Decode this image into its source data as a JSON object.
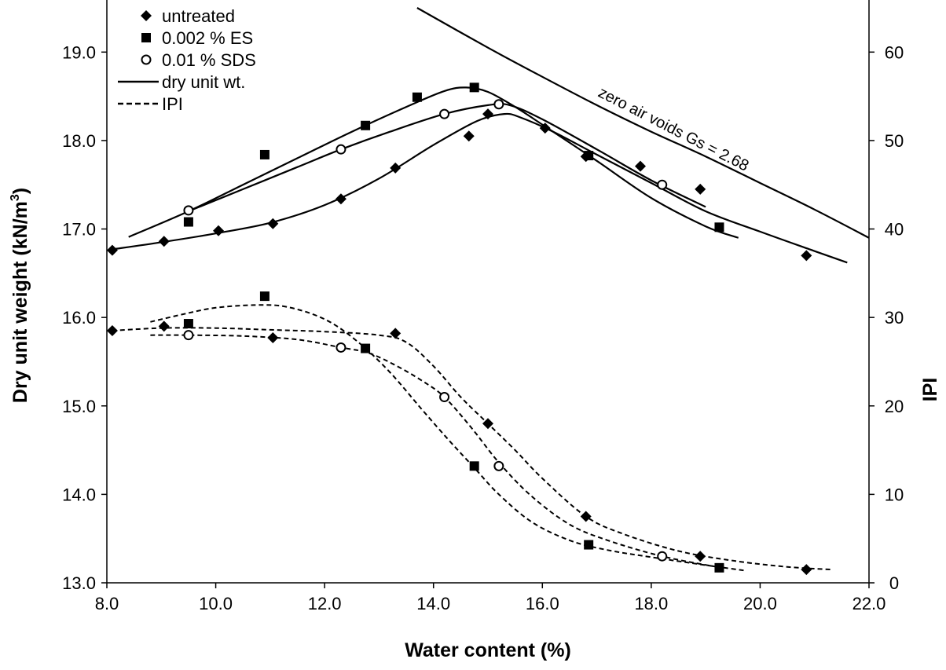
{
  "chart_data": {
    "type": "scatter",
    "title": "",
    "xlabel": "Water content (%)",
    "ylabel": "Dry unit weight (kN/m³)",
    "ylabel_parts": [
      "Dry unit weight (kN/m",
      "3",
      ")"
    ],
    "y2label": "IPI",
    "xlim": [
      8.0,
      22.0
    ],
    "ylim": [
      13.0,
      19.5
    ],
    "y2lim": [
      0,
      65
    ],
    "x_ticks": [
      "8.0",
      "10.0",
      "12.0",
      "14.0",
      "16.0",
      "18.0",
      "20.0",
      "22.0"
    ],
    "y_ticks": [
      "13.0",
      "14.0",
      "15.0",
      "16.0",
      "17.0",
      "18.0",
      "19.0"
    ],
    "y2_ticks": [
      "0",
      "10",
      "20",
      "30",
      "40",
      "50",
      "60"
    ],
    "grid": false,
    "legend_position": "top-left",
    "legend": [
      "untreated",
      "0.002 % ES",
      "0.01 % SDS",
      "dry unit wt.",
      "IPI"
    ],
    "annotation": "zero air voids Gs = 2.68",
    "series": [
      {
        "name": "untreated",
        "marker": "diamond",
        "axis": "left",
        "kind": "dry unit wt.",
        "x": [
          8.1,
          9.05,
          10.05,
          11.05,
          12.3,
          13.3,
          14.65,
          15.0,
          16.05,
          16.8,
          17.8,
          18.9,
          20.85
        ],
        "y": [
          16.76,
          16.86,
          16.98,
          17.06,
          17.34,
          17.69,
          18.05,
          18.3,
          18.14,
          17.82,
          17.71,
          17.45,
          16.7
        ]
      },
      {
        "name": "0.002 % ES",
        "marker": "square",
        "axis": "left",
        "kind": "dry unit wt.",
        "x": [
          9.5,
          10.9,
          12.75,
          13.7,
          14.75,
          16.85,
          19.25
        ],
        "y": [
          17.08,
          17.84,
          18.17,
          18.49,
          18.6,
          17.83,
          17.02
        ]
      },
      {
        "name": "0.01 % SDS",
        "marker": "circle",
        "axis": "left",
        "kind": "dry unit wt.",
        "x": [
          9.5,
          12.3,
          14.2,
          15.2,
          18.2
        ],
        "y": [
          17.21,
          17.9,
          18.3,
          18.41,
          17.5
        ]
      },
      {
        "name": "untreated",
        "marker": "diamond",
        "axis": "right",
        "kind": "IPI",
        "x": [
          8.1,
          9.05,
          11.05,
          13.3,
          15.0,
          16.8,
          18.9,
          20.85
        ],
        "y": [
          28.5,
          29,
          27.7,
          28.2,
          18,
          7.5,
          3,
          1.5
        ]
      },
      {
        "name": "0.002 % ES",
        "marker": "square",
        "axis": "right",
        "kind": "IPI",
        "x": [
          9.5,
          10.9,
          12.75,
          14.75,
          16.85,
          19.25
        ],
        "y": [
          29.3,
          32.4,
          26.5,
          13.2,
          4.3,
          1.7
        ]
      },
      {
        "name": "0.01 % SDS",
        "marker": "circle",
        "axis": "right",
        "kind": "IPI",
        "x": [
          9.5,
          12.3,
          14.2,
          15.2,
          18.2
        ],
        "y": [
          28,
          26.6,
          21,
          13.2,
          3
        ]
      }
    ],
    "fit_curves": [
      {
        "kind": "dry unit wt.",
        "axis": "left",
        "style": "solid",
        "x": [
          8.1,
          9.0,
          10.0,
          11.0,
          12.0,
          13.0,
          14.0,
          14.8,
          15.3,
          15.6,
          16.2,
          17.0,
          18.0,
          19.0,
          20.0,
          21.0,
          21.6
        ],
        "y": [
          16.77,
          16.85,
          16.95,
          17.07,
          17.27,
          17.57,
          17.95,
          18.22,
          18.3,
          18.26,
          18.1,
          17.84,
          17.52,
          17.2,
          16.97,
          16.75,
          16.62
        ]
      },
      {
        "kind": "dry unit wt.",
        "axis": "left",
        "style": "solid",
        "x": [
          8.4,
          9.5,
          10.5,
          11.5,
          12.5,
          13.5,
          14.2,
          14.6,
          15.0,
          15.5,
          16.0,
          17.0,
          18.0,
          19.0,
          19.6
        ],
        "y": [
          16.91,
          17.2,
          17.5,
          17.8,
          18.1,
          18.38,
          18.56,
          18.6,
          18.55,
          18.38,
          18.18,
          17.77,
          17.35,
          17.03,
          16.9
        ]
      },
      {
        "kind": "dry unit wt.",
        "axis": "left",
        "style": "solid",
        "x": [
          9.5,
          10.5,
          11.5,
          12.3,
          13.2,
          14.2,
          15.0,
          15.4,
          16.0,
          17.0,
          18.0,
          19.0
        ],
        "y": [
          17.2,
          17.45,
          17.7,
          17.9,
          18.1,
          18.3,
          18.4,
          18.4,
          18.24,
          17.9,
          17.55,
          17.25
        ]
      },
      {
        "kind": "zero air voids",
        "axis": "left",
        "style": "solid",
        "x": [
          13.7,
          15.0,
          16.0,
          17.0,
          18.0,
          19.0,
          20.0,
          21.0,
          22.0
        ],
        "y": [
          19.5,
          19.05,
          18.72,
          18.4,
          18.1,
          17.82,
          17.52,
          17.22,
          16.9
        ]
      },
      {
        "kind": "IPI",
        "axis": "right",
        "style": "dashed",
        "x": [
          8.1,
          9.0,
          10.0,
          11.0,
          12.0,
          13.0,
          13.5,
          14.0,
          14.5,
          15.0,
          15.5,
          16.0,
          16.8,
          17.5,
          18.5,
          19.5,
          20.5,
          21.3
        ],
        "y": [
          28.5,
          28.8,
          28.8,
          28.6,
          28.4,
          28.0,
          27.2,
          24.5,
          21,
          18,
          15,
          11.8,
          7.5,
          5.5,
          3.6,
          2.5,
          1.8,
          1.5
        ]
      },
      {
        "kind": "IPI",
        "axis": "right",
        "style": "dashed",
        "x": [
          8.8,
          9.5,
          10.0,
          10.7,
          11.3,
          12.0,
          12.6,
          13.2,
          13.8,
          14.3,
          14.75,
          15.2,
          15.8,
          16.5,
          17.2,
          18.0,
          19.0,
          19.7
        ],
        "y": [
          29.5,
          30.5,
          31.1,
          31.4,
          31.2,
          29.8,
          27.3,
          23.8,
          19.5,
          16,
          13,
          10,
          6.9,
          4.8,
          3.7,
          2.9,
          2.0,
          1.4
        ]
      },
      {
        "kind": "IPI",
        "axis": "right",
        "style": "dashed",
        "x": [
          8.8,
          9.5,
          10.5,
          11.5,
          12.3,
          12.8,
          13.3,
          13.8,
          14.2,
          14.7,
          15.2,
          15.8,
          16.5,
          17.2,
          18.2,
          19.2
        ],
        "y": [
          28,
          28,
          27.9,
          27.5,
          26.6,
          26.0,
          24.6,
          22.8,
          21,
          17.5,
          13.6,
          9.8,
          6.6,
          4.8,
          3.0,
          1.8
        ]
      }
    ]
  }
}
